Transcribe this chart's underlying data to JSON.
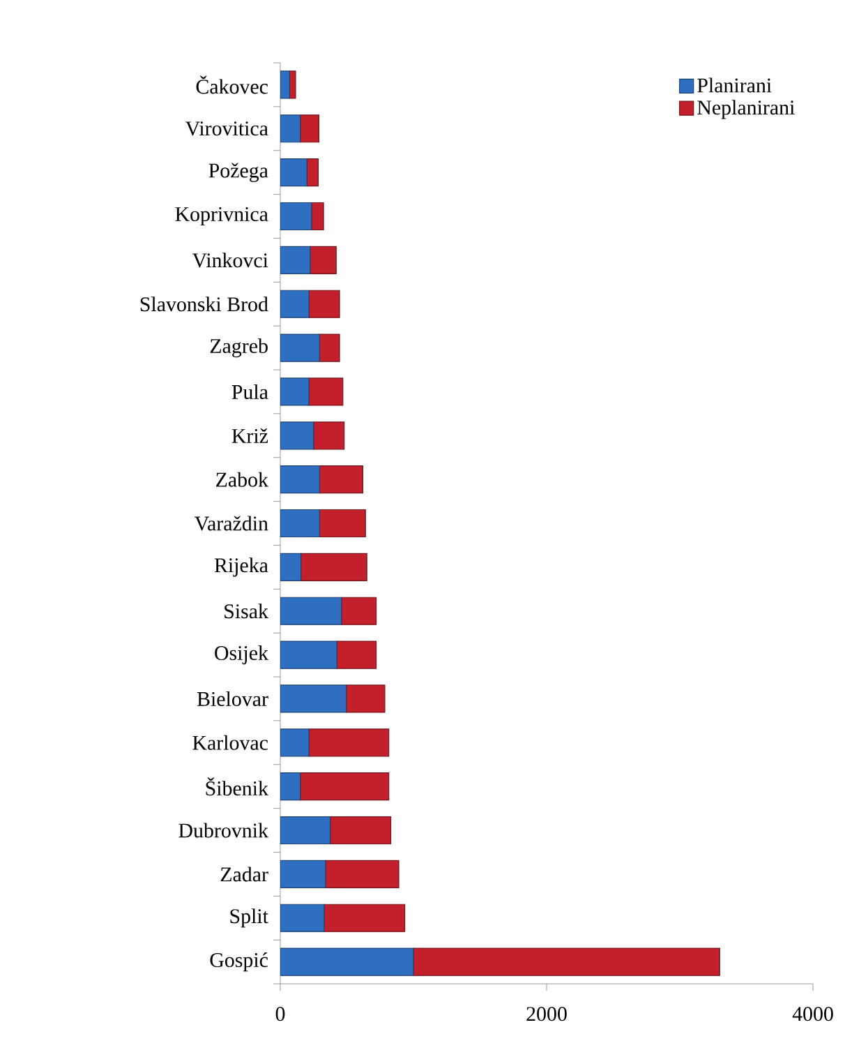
{
  "chart_data": {
    "type": "bar",
    "orientation": "horizontal",
    "stacked": true,
    "categories": [
      "Čakovec",
      "Virovitica",
      "Požega",
      "Koprivnica",
      "Vinkovci",
      "Slavonski Brod",
      "Zagreb",
      "Pula",
      "Križ",
      "Zabok",
      "Varaždin",
      "Rijeka",
      "Sisak",
      "Osijek",
      "Bielovar",
      "Karlovac",
      "Šibenik",
      "Dubrovnik",
      "Zadar",
      "Split",
      "Gospić"
    ],
    "series": [
      {
        "name": "Planirani",
        "color": "#2f6fc2",
        "values": [
          70,
          150,
          200,
          235,
          225,
          215,
          295,
          215,
          250,
          295,
          295,
          155,
          460,
          425,
          495,
          215,
          150,
          375,
          340,
          330,
          1000
        ]
      },
      {
        "name": "Neplanirani",
        "color": "#c4202b",
        "values": [
          45,
          140,
          85,
          90,
          195,
          230,
          150,
          255,
          230,
          325,
          345,
          495,
          260,
          295,
          290,
          600,
          665,
          455,
          550,
          605,
          2300
        ]
      }
    ],
    "xlim": [
      0,
      4000
    ],
    "xticks": [
      0,
      2000,
      4000
    ],
    "legend": "top right"
  }
}
